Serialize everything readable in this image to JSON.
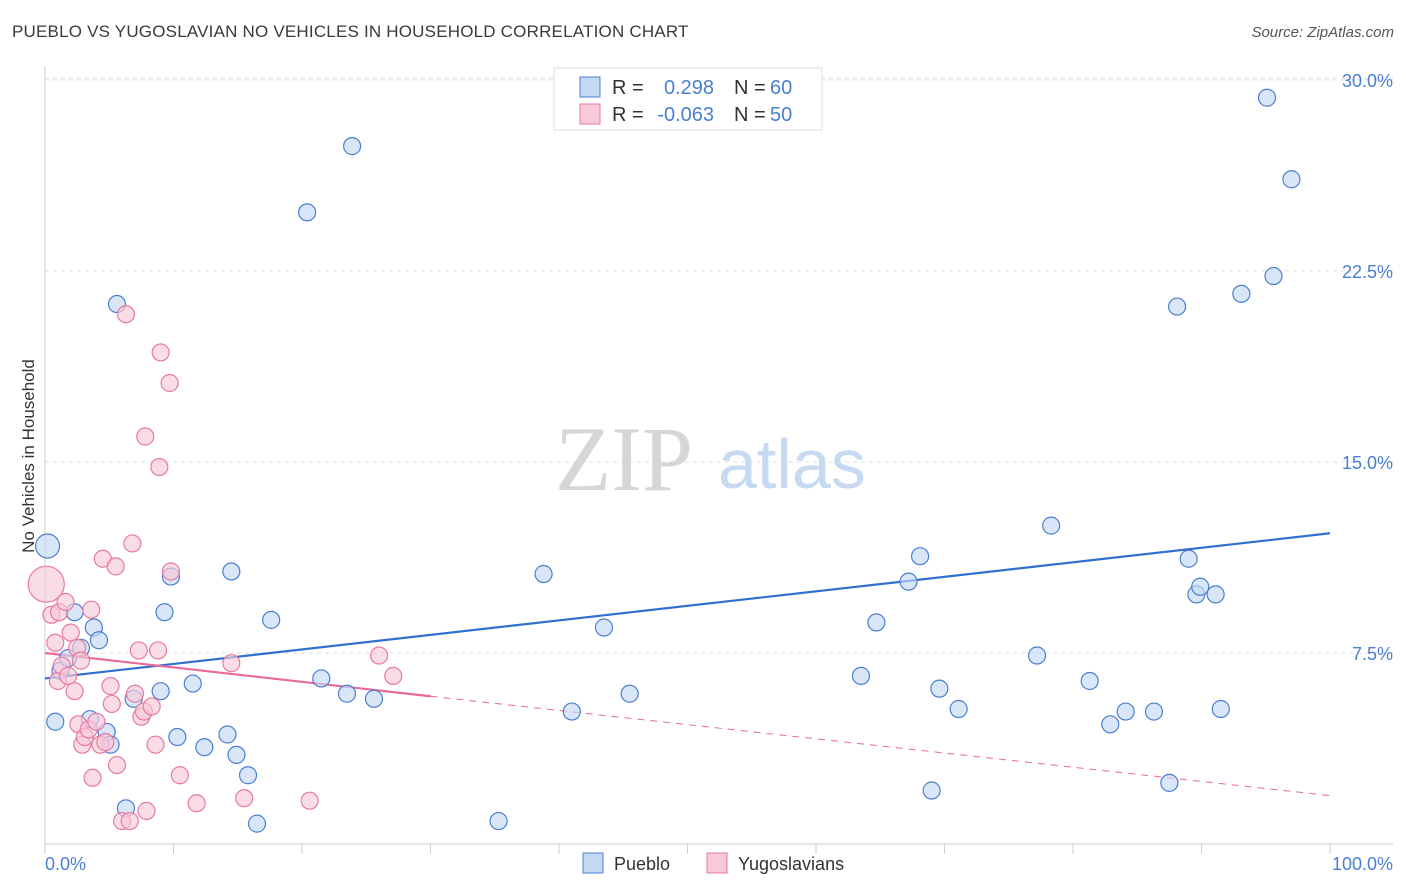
{
  "title": "PUEBLO VS YUGOSLAVIAN NO VEHICLES IN HOUSEHOLD CORRELATION CHART",
  "source": "Source: ZipAtlas.com",
  "watermark": {
    "zip": "ZIP",
    "atlas": "atlas"
  },
  "colors": {
    "blue": "#4a7fd0",
    "blue_fill": "#c5d9f5",
    "blue_line": "#2f6fcf",
    "pink": "#e8799f",
    "pink_fill": "#f8cad8",
    "pink_line": "#e8699a"
  },
  "legend": {
    "r_label": "R =",
    "n_label": "N =",
    "rows": [
      {
        "r": "0.298",
        "n": "60"
      },
      {
        "r": "-0.063",
        "n": "50"
      }
    ]
  },
  "chart_data": {
    "type": "scatter",
    "title": "PUEBLO VS YUGOSLAVIAN NO VEHICLES IN HOUSEHOLD CORRELATION CHART",
    "xlabel": "",
    "ylabel": "No Vehicles in Household",
    "xlim": [
      0,
      100
    ],
    "ylim": [
      0,
      31
    ],
    "x_tick_labels": [
      "0.0%",
      "100.0%"
    ],
    "y_ticks": [
      7.5,
      15.0,
      22.5,
      30.0
    ],
    "y_tick_labels": [
      "7.5%",
      "15.0%",
      "22.5%",
      "30.0%"
    ],
    "grid": true,
    "legend_position": "top-center",
    "series": [
      {
        "name": "Pueblo",
        "color": "#4a7fd0",
        "points": [
          [
            0.2,
            11.7
          ],
          [
            0.8,
            4.8
          ],
          [
            1.2,
            6.8
          ],
          [
            1.8,
            7.3
          ],
          [
            2.3,
            9.1
          ],
          [
            2.8,
            7.7
          ],
          [
            3.5,
            4.9
          ],
          [
            3.8,
            8.5
          ],
          [
            4.2,
            8.0
          ],
          [
            4.8,
            4.4
          ],
          [
            5.1,
            3.9
          ],
          [
            5.6,
            21.2
          ],
          [
            6.3,
            1.4
          ],
          [
            6.9,
            5.7
          ],
          [
            9.0,
            6.0
          ],
          [
            9.3,
            9.1
          ],
          [
            9.8,
            10.5
          ],
          [
            10.3,
            4.2
          ],
          [
            11.5,
            6.3
          ],
          [
            12.4,
            3.8
          ],
          [
            14.2,
            4.3
          ],
          [
            14.5,
            10.7
          ],
          [
            14.9,
            3.5
          ],
          [
            15.8,
            2.7
          ],
          [
            16.5,
            0.8
          ],
          [
            17.6,
            8.8
          ],
          [
            20.4,
            24.8
          ],
          [
            21.5,
            6.5
          ],
          [
            23.5,
            5.9
          ],
          [
            23.9,
            27.4
          ],
          [
            25.6,
            5.7
          ],
          [
            35.3,
            0.9
          ],
          [
            38.8,
            10.6
          ],
          [
            41.0,
            5.2
          ],
          [
            43.5,
            8.5
          ],
          [
            45.5,
            5.9
          ],
          [
            63.5,
            6.6
          ],
          [
            64.7,
            8.7
          ],
          [
            67.2,
            10.3
          ],
          [
            68.1,
            11.3
          ],
          [
            69.0,
            2.1
          ],
          [
            69.6,
            6.1
          ],
          [
            71.1,
            5.3
          ],
          [
            77.2,
            7.4
          ],
          [
            78.3,
            12.5
          ],
          [
            81.3,
            6.4
          ],
          [
            82.9,
            4.7
          ],
          [
            84.1,
            5.2
          ],
          [
            86.3,
            5.2
          ],
          [
            87.5,
            2.4
          ],
          [
            88.1,
            21.1
          ],
          [
            89.0,
            11.2
          ],
          [
            89.6,
            9.8
          ],
          [
            89.9,
            10.1
          ],
          [
            91.1,
            9.8
          ],
          [
            91.5,
            5.3
          ],
          [
            93.1,
            21.6
          ],
          [
            95.1,
            29.3
          ],
          [
            95.6,
            22.3
          ],
          [
            97.0,
            26.1
          ]
        ]
      },
      {
        "name": "Yugoslavians",
        "color": "#e8799f",
        "points": [
          [
            0.1,
            10.2
          ],
          [
            0.5,
            9.0
          ],
          [
            0.8,
            7.9
          ],
          [
            1.0,
            6.4
          ],
          [
            1.1,
            9.1
          ],
          [
            1.3,
            7.0
          ],
          [
            1.6,
            9.5
          ],
          [
            1.8,
            6.6
          ],
          [
            2.0,
            8.3
          ],
          [
            2.3,
            6.0
          ],
          [
            2.5,
            7.7
          ],
          [
            2.6,
            4.7
          ],
          [
            2.8,
            7.2
          ],
          [
            2.9,
            3.9
          ],
          [
            3.1,
            4.2
          ],
          [
            3.4,
            4.5
          ],
          [
            3.6,
            9.2
          ],
          [
            3.7,
            2.6
          ],
          [
            4.0,
            4.8
          ],
          [
            4.3,
            3.9
          ],
          [
            4.5,
            11.2
          ],
          [
            4.7,
            4.0
          ],
          [
            5.1,
            6.2
          ],
          [
            5.2,
            5.5
          ],
          [
            5.5,
            10.9
          ],
          [
            5.6,
            3.1
          ],
          [
            6.0,
            0.9
          ],
          [
            6.3,
            20.8
          ],
          [
            6.6,
            0.9
          ],
          [
            6.8,
            11.8
          ],
          [
            7.0,
            5.9
          ],
          [
            7.3,
            7.6
          ],
          [
            7.5,
            5.0
          ],
          [
            7.7,
            5.2
          ],
          [
            7.8,
            16.0
          ],
          [
            7.9,
            1.3
          ],
          [
            8.3,
            5.4
          ],
          [
            8.6,
            3.9
          ],
          [
            8.8,
            7.6
          ],
          [
            8.9,
            14.8
          ],
          [
            9.0,
            19.3
          ],
          [
            9.7,
            18.1
          ],
          [
            9.8,
            10.7
          ],
          [
            10.5,
            2.7
          ],
          [
            11.8,
            1.6
          ],
          [
            14.5,
            7.1
          ],
          [
            15.5,
            1.8
          ],
          [
            20.6,
            1.7
          ],
          [
            26.0,
            7.4
          ],
          [
            27.1,
            6.6
          ]
        ]
      }
    ],
    "trend_lines": [
      {
        "series": "Pueblo",
        "x": [
          0,
          100
        ],
        "y": [
          6.5,
          12.2
        ],
        "style": "solid"
      },
      {
        "series": "Yugoslavians",
        "x": [
          0,
          30
        ],
        "y": [
          7.5,
          5.8
        ],
        "style": "solid"
      },
      {
        "series": "Yugoslavians",
        "x": [
          30,
          100
        ],
        "y": [
          5.8,
          1.9
        ],
        "style": "dashed"
      }
    ]
  }
}
